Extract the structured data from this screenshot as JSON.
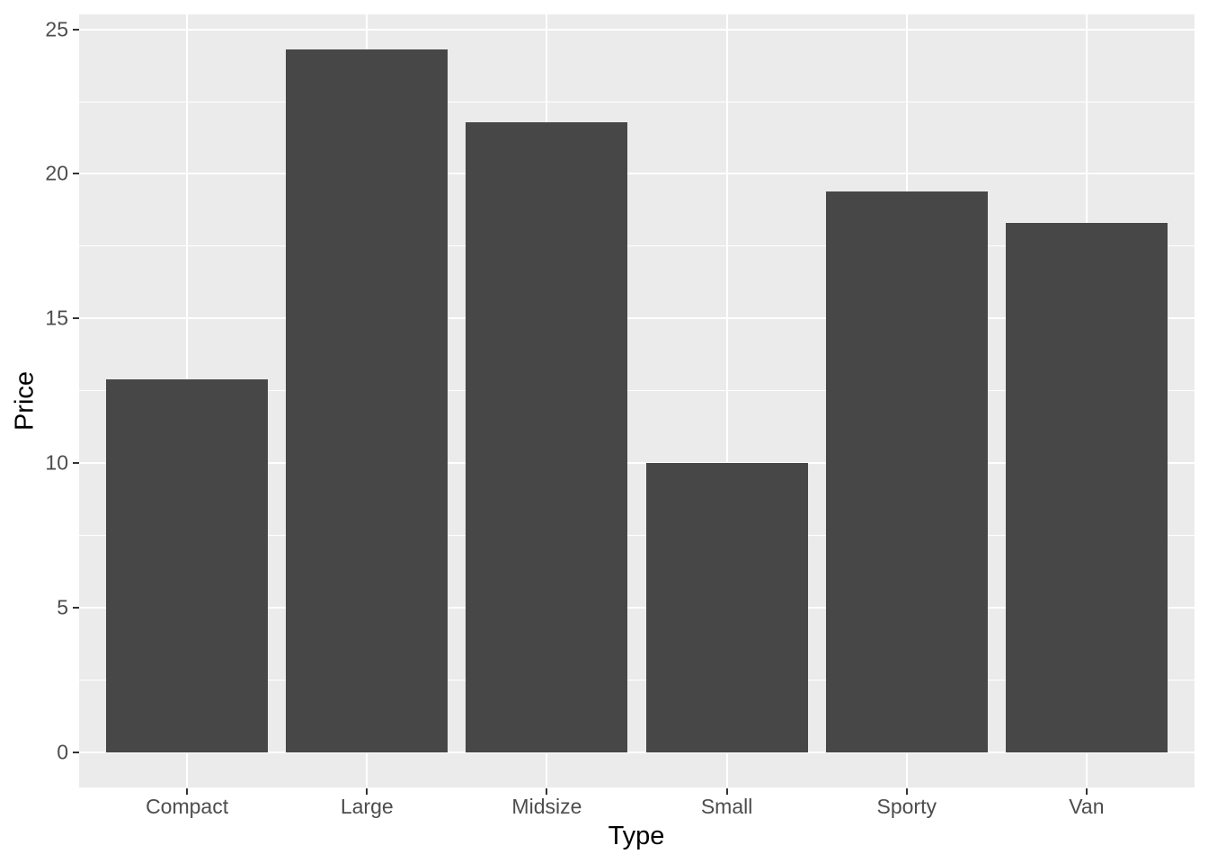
{
  "chart_data": {
    "type": "bar",
    "title": "",
    "categories": [
      "Compact",
      "Large",
      "Midsize",
      "Small",
      "Sporty",
      "Van"
    ],
    "values": [
      12.9,
      24.3,
      21.8,
      10.0,
      19.4,
      18.3
    ],
    "xlabel": "Type",
    "ylabel": "Price",
    "y_tick_labels": [
      "0",
      "5",
      "10",
      "15",
      "20",
      "25"
    ],
    "y_major_breaks": [
      0,
      5,
      10,
      15,
      20,
      25
    ],
    "y_minor_breaks": [
      2.5,
      7.5,
      12.5,
      17.5,
      22.5
    ],
    "ylim": [
      -1.215,
      25.515
    ],
    "xlim": [
      0.4,
      6.6
    ],
    "bar_width_units": 0.9,
    "grid": "major-and-minor",
    "legend": "none",
    "theme": "ggplot-grey",
    "colors": {
      "bar_fill": "#474747",
      "panel_background": "#EBEBEB",
      "gridline": "#FFFFFF",
      "tick_label": "#4D4D4D",
      "axis_title": "#000000",
      "tick_mark": "#333333",
      "outer_background": "#FFFFFF"
    }
  }
}
